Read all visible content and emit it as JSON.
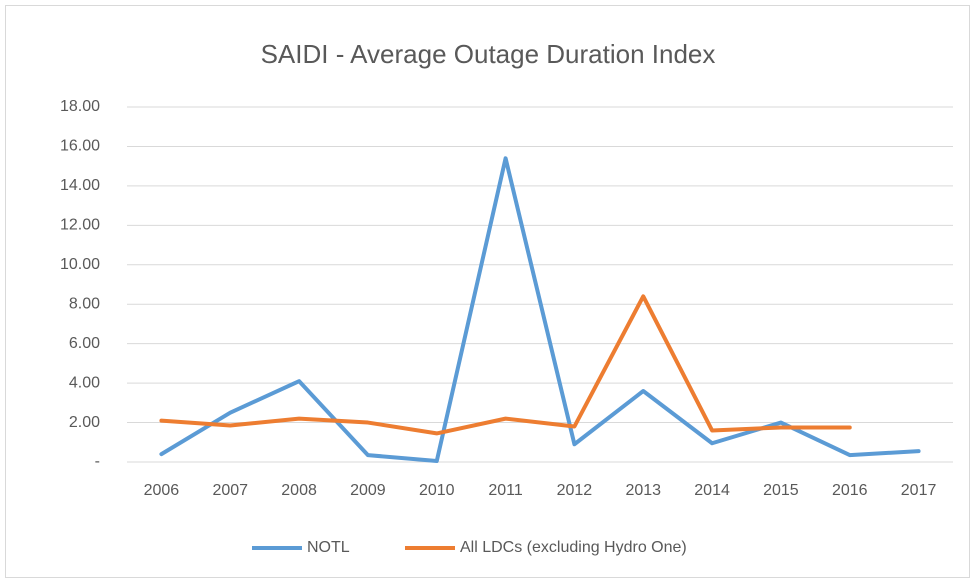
{
  "chart_data": {
    "type": "line",
    "title": "SAIDI - Average Outage Duration Index",
    "categories": [
      "2006",
      "2007",
      "2008",
      "2009",
      "2010",
      "2011",
      "2012",
      "2013",
      "2014",
      "2015",
      "2016",
      "2017"
    ],
    "series": [
      {
        "name": "NOTL",
        "color": "#5b9bd5",
        "values": [
          0.4,
          2.5,
          4.1,
          0.35,
          0.05,
          15.4,
          0.9,
          3.6,
          0.95,
          2.0,
          0.35,
          0.55
        ]
      },
      {
        "name": "All LDCs (excluding Hydro One)",
        "color": "#ed7d31",
        "values": [
          2.1,
          1.85,
          2.2,
          2.0,
          1.45,
          2.2,
          1.8,
          8.4,
          1.6,
          1.75,
          1.75,
          null
        ]
      }
    ],
    "ylim": [
      0,
      18
    ],
    "yticks": [
      {
        "value": 0,
        "label": "-"
      },
      {
        "value": 2,
        "label": "2.00"
      },
      {
        "value": 4,
        "label": "4.00"
      },
      {
        "value": 6,
        "label": "6.00"
      },
      {
        "value": 8,
        "label": "8.00"
      },
      {
        "value": 10,
        "label": "10.00"
      },
      {
        "value": 12,
        "label": "12.00"
      },
      {
        "value": 14,
        "label": "14.00"
      },
      {
        "value": 16,
        "label": "16.00"
      },
      {
        "value": 18,
        "label": "18.00"
      }
    ],
    "grid": true,
    "legend": "bottom"
  }
}
